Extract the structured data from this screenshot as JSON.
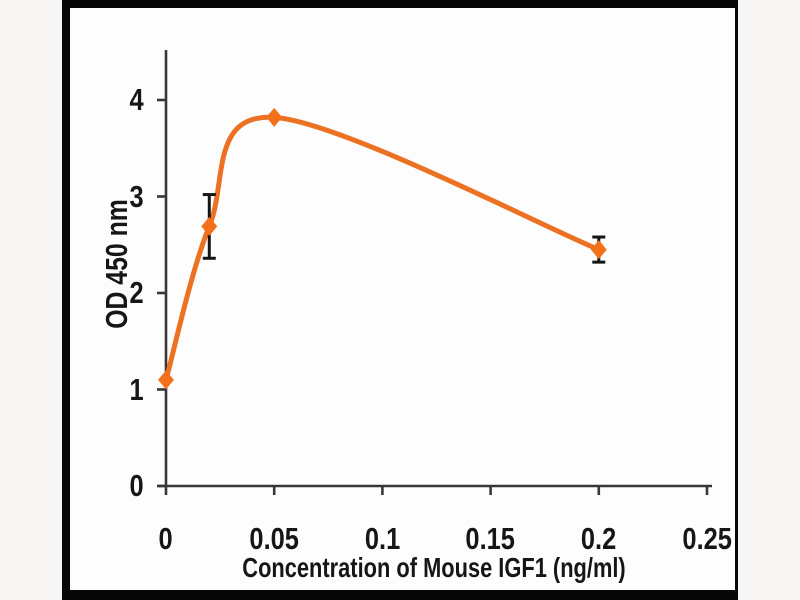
{
  "colors": {
    "line": "#EC7123",
    "marker": "#F3711B",
    "error_bar": "#141414",
    "axis": "#373737",
    "text": "#161616",
    "frame": "#070707",
    "plot_background": "#fdfdfd"
  },
  "chart_data": {
    "type": "line",
    "title": "",
    "xlabel": "Concentration of Mouse IGF1 (ng/ml)",
    "ylabel": "OD 450 nm",
    "x_ticks": [
      "0",
      "0.05",
      "0.1",
      "0.15",
      "0.2",
      "0.25"
    ],
    "x_tick_values": [
      0,
      0.05,
      0.1,
      0.15,
      0.2,
      0.25
    ],
    "y_ticks": [
      "0",
      "1",
      "2",
      "3",
      "4"
    ],
    "y_tick_values": [
      0,
      1,
      2,
      3,
      4
    ],
    "xlim": [
      0,
      0.25
    ],
    "ylim": [
      0,
      4.5
    ],
    "grid": false,
    "legend": "none",
    "series": [
      {
        "marker": "diamond",
        "smooth": true,
        "points": [
          {
            "x": 0,
            "y": 1.1,
            "error": 0
          },
          {
            "x": 0.02,
            "y": 2.69,
            "error": 0.33
          },
          {
            "x": 0.05,
            "y": 3.82,
            "error": 0
          },
          {
            "x": 0.2,
            "y": 2.45,
            "error": 0.13
          }
        ]
      }
    ]
  }
}
